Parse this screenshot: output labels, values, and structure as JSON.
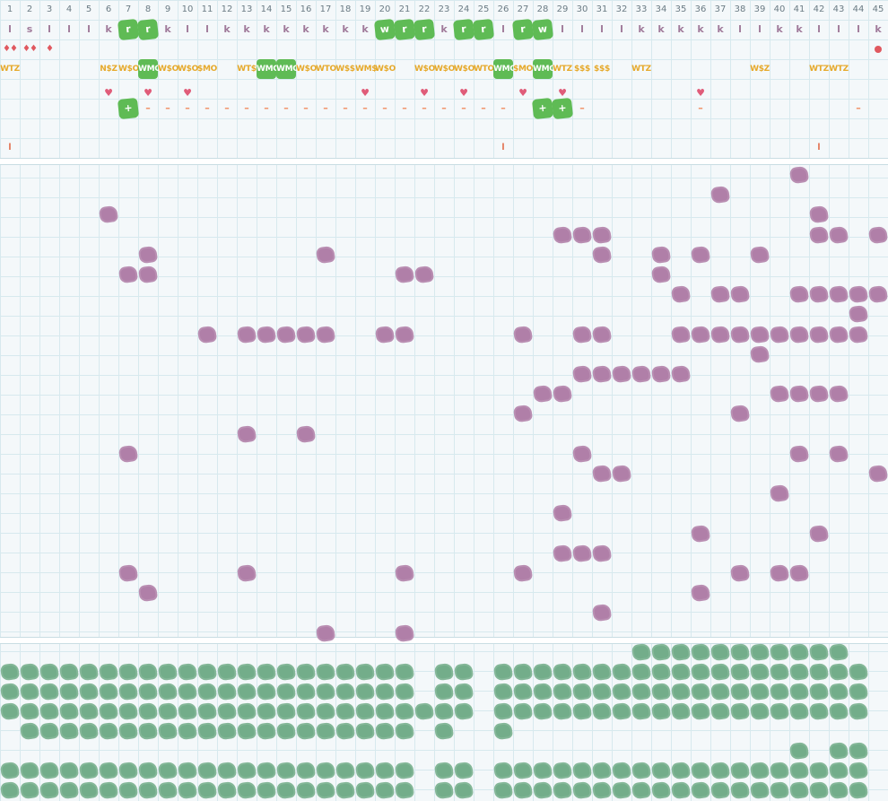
{
  "columns": [
    "1",
    "2",
    "3",
    "4",
    "5",
    "6",
    "7",
    "8",
    "9",
    "10",
    "11",
    "12",
    "13",
    "14",
    "15",
    "16",
    "17",
    "18",
    "19",
    "20",
    "21",
    "22",
    "23",
    "24",
    "25",
    "26",
    "27",
    "28",
    "29",
    "30",
    "31",
    "32",
    "33",
    "34",
    "35",
    "36",
    "37",
    "38",
    "39",
    "40",
    "41",
    "42",
    "43",
    "44",
    "45"
  ],
  "letter_row": [
    "l",
    "s",
    "l",
    "l",
    "l",
    "k",
    "r",
    "r",
    "k",
    "l",
    "l",
    "k",
    "k",
    "k",
    "k",
    "k",
    "k",
    "k",
    "k",
    "w",
    "r",
    "r",
    "k",
    "r",
    "r",
    "l",
    "r",
    "w",
    "l",
    "l",
    "l",
    "l",
    "k",
    "k",
    "k",
    "k",
    "k",
    "l",
    "l",
    "k",
    "k",
    "l",
    "l",
    "l",
    "k"
  ],
  "letter_highlight": [
    7,
    8,
    20,
    21,
    22,
    24,
    25,
    27,
    28
  ],
  "drops": [
    {
      "col": 1,
      "text": "♦♦"
    },
    {
      "col": 2,
      "text": "♦♦"
    },
    {
      "col": 3,
      "text": "♦"
    }
  ],
  "dot_col": 45,
  "tag_row": [
    {
      "col": 1,
      "text": "WTZ"
    },
    {
      "col": 6,
      "text": "N$Z"
    },
    {
      "col": 7,
      "text": "W$O"
    },
    {
      "col": 8,
      "text": "WMO",
      "hl": true
    },
    {
      "col": 9,
      "text": "W$O"
    },
    {
      "col": 10,
      "text": "W$O"
    },
    {
      "col": 11,
      "text": "$MO"
    },
    {
      "col": 13,
      "text": "WT$"
    },
    {
      "col": 14,
      "text": "WMO",
      "hl": true
    },
    {
      "col": 15,
      "text": "WMO",
      "hl": true
    },
    {
      "col": 16,
      "text": "W$O"
    },
    {
      "col": 17,
      "text": "WTO"
    },
    {
      "col": 18,
      "text": "W$$"
    },
    {
      "col": 19,
      "text": "WM$"
    },
    {
      "col": 20,
      "text": "W$O"
    },
    {
      "col": 22,
      "text": "W$O"
    },
    {
      "col": 23,
      "text": "W$O"
    },
    {
      "col": 24,
      "text": "W$O"
    },
    {
      "col": 25,
      "text": "WTO"
    },
    {
      "col": 26,
      "text": "WMO",
      "hl": true
    },
    {
      "col": 27,
      "text": "$MO"
    },
    {
      "col": 28,
      "text": "WMO",
      "hl": true
    },
    {
      "col": 29,
      "text": "WTZ"
    },
    {
      "col": 30,
      "text": "$$$"
    },
    {
      "col": 31,
      "text": "$$$"
    },
    {
      "col": 33,
      "text": "WTZ"
    },
    {
      "col": 39,
      "text": "W$Z"
    },
    {
      "col": 42,
      "text": "WTZ"
    },
    {
      "col": 43,
      "text": "WTZ"
    }
  ],
  "heart_cols": [
    6,
    8,
    10,
    19,
    22,
    24,
    27,
    29,
    36
  ],
  "dash_cols": [
    8,
    9,
    10,
    11,
    12,
    13,
    14,
    15,
    16,
    17,
    18,
    19,
    20,
    21,
    22,
    23,
    24,
    25,
    26,
    30,
    36,
    44
  ],
  "plus_cols": [
    7,
    28,
    29
  ],
  "tick_cols": [
    1,
    26,
    42
  ],
  "symbols": {
    "heart": "♥",
    "dash": "–",
    "plus": "+",
    "tick": "l"
  },
  "purple_blots": [
    [
      1,
      41
    ],
    [
      2,
      37
    ],
    [
      3,
      6
    ],
    [
      3,
      42
    ],
    [
      4,
      29
    ],
    [
      4,
      30
    ],
    [
      4,
      31
    ],
    [
      4,
      42
    ],
    [
      4,
      43
    ],
    [
      4,
      45
    ],
    [
      5,
      8
    ],
    [
      5,
      17
    ],
    [
      5,
      31
    ],
    [
      5,
      34
    ],
    [
      5,
      36
    ],
    [
      5,
      39
    ],
    [
      6,
      7
    ],
    [
      6,
      8
    ],
    [
      6,
      21
    ],
    [
      6,
      22
    ],
    [
      6,
      34
    ],
    [
      7,
      35
    ],
    [
      7,
      37
    ],
    [
      7,
      38
    ],
    [
      7,
      41
    ],
    [
      7,
      42
    ],
    [
      7,
      43
    ],
    [
      7,
      44
    ],
    [
      7,
      45
    ],
    [
      8,
      44
    ],
    [
      9,
      11
    ],
    [
      9,
      13
    ],
    [
      9,
      14
    ],
    [
      9,
      15
    ],
    [
      9,
      16
    ],
    [
      9,
      17
    ],
    [
      9,
      20
    ],
    [
      9,
      21
    ],
    [
      9,
      27
    ],
    [
      9,
      30
    ],
    [
      9,
      31
    ],
    [
      9,
      35
    ],
    [
      9,
      36
    ],
    [
      9,
      37
    ],
    [
      9,
      38
    ],
    [
      9,
      39
    ],
    [
      9,
      40
    ],
    [
      9,
      41
    ],
    [
      9,
      42
    ],
    [
      9,
      43
    ],
    [
      9,
      44
    ],
    [
      10,
      39
    ],
    [
      11,
      30
    ],
    [
      11,
      31
    ],
    [
      11,
      32
    ],
    [
      11,
      33
    ],
    [
      11,
      34
    ],
    [
      11,
      35
    ],
    [
      12,
      28
    ],
    [
      12,
      29
    ],
    [
      12,
      40
    ],
    [
      12,
      41
    ],
    [
      12,
      42
    ],
    [
      12,
      43
    ],
    [
      13,
      27
    ],
    [
      13,
      38
    ],
    [
      14,
      13
    ],
    [
      14,
      16
    ],
    [
      15,
      7
    ],
    [
      15,
      30
    ],
    [
      15,
      41
    ],
    [
      15,
      43
    ],
    [
      16,
      31
    ],
    [
      16,
      32
    ],
    [
      16,
      45
    ],
    [
      17,
      40
    ],
    [
      18,
      29
    ],
    [
      19,
      36
    ],
    [
      19,
      42
    ],
    [
      20,
      29
    ],
    [
      20,
      30
    ],
    [
      20,
      31
    ],
    [
      21,
      7
    ],
    [
      21,
      13
    ],
    [
      21,
      21
    ],
    [
      21,
      27
    ],
    [
      21,
      38
    ],
    [
      21,
      40
    ],
    [
      21,
      41
    ],
    [
      22,
      8
    ],
    [
      22,
      36
    ],
    [
      23,
      31
    ],
    [
      24,
      17
    ],
    [
      24,
      21
    ]
  ],
  "green_blots": {
    "row1": [
      33,
      34,
      35,
      36,
      37,
      38,
      39,
      40,
      41,
      42,
      43
    ],
    "row2": [
      1,
      2,
      3,
      4,
      5,
      6,
      7,
      8,
      9,
      10,
      11,
      12,
      13,
      14,
      15,
      16,
      17,
      18,
      19,
      20,
      21,
      23,
      24,
      26,
      27,
      28,
      29,
      30,
      31,
      32,
      33,
      34,
      35,
      36,
      37,
      38,
      39,
      40,
      41,
      42,
      43,
      44
    ],
    "row3": [
      1,
      2,
      3,
      4,
      5,
      6,
      7,
      8,
      9,
      10,
      11,
      12,
      13,
      14,
      15,
      16,
      17,
      18,
      19,
      20,
      21,
      23,
      24,
      26,
      27,
      28,
      29,
      30,
      31,
      32,
      33,
      34,
      35,
      36,
      37,
      38,
      39,
      40,
      41,
      42,
      43,
      44
    ],
    "row4": [
      1,
      2,
      3,
      4,
      5,
      6,
      7,
      8,
      9,
      10,
      11,
      12,
      13,
      14,
      15,
      16,
      17,
      18,
      19,
      20,
      21,
      22,
      23,
      24,
      26,
      27,
      28,
      29,
      30,
      31,
      32,
      33,
      34,
      35,
      36,
      37,
      38,
      39,
      40,
      41,
      42,
      43,
      44
    ],
    "row5": [
      2,
      3,
      4,
      5,
      6,
      7,
      8,
      9,
      10,
      11,
      12,
      13,
      14,
      15,
      16,
      17,
      18,
      19,
      20,
      21,
      23,
      26
    ],
    "row6": [
      41,
      43,
      44
    ],
    "row7": [
      1,
      2,
      3,
      4,
      5,
      6,
      7,
      8,
      9,
      10,
      11,
      12,
      13,
      14,
      15,
      16,
      17,
      18,
      19,
      20,
      21,
      23,
      24,
      26,
      27,
      28,
      29,
      30,
      31,
      32,
      33,
      34,
      35,
      36,
      37,
      38,
      39,
      40,
      41,
      42,
      43,
      44
    ],
    "row8": [
      1,
      2,
      3,
      4,
      5,
      6,
      7,
      8,
      9,
      10,
      11,
      12,
      13,
      14,
      15,
      16,
      17,
      18,
      19,
      20,
      21,
      23,
      24,
      26,
      27,
      28,
      29,
      30,
      31,
      32,
      33,
      34,
      35,
      36,
      37,
      38,
      39,
      40,
      41,
      42,
      43,
      44
    ]
  }
}
